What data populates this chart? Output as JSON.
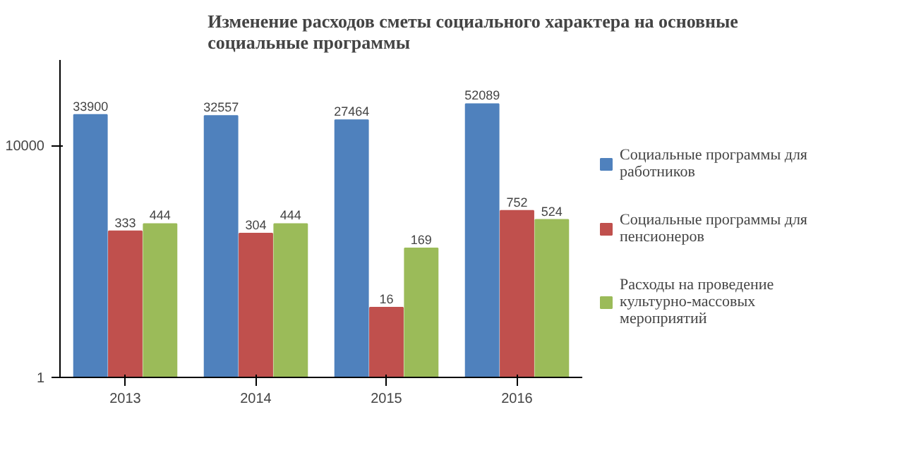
{
  "chart_data": {
    "type": "bar",
    "title": "Изменение расходов сметы социального характера на основные социальные программы",
    "categories": [
      "2013",
      "2014",
      "2015",
      "2016"
    ],
    "series": [
      {
        "name": "Социальные программы для работников",
        "color": "#4f81bd",
        "values": [
          33900,
          32557,
          27464,
          52089
        ]
      },
      {
        "name": "Социальные программы для пенсионеров",
        "color": "#c0504d",
        "values": [
          333,
          304,
          16,
          752
        ]
      },
      {
        "name": "Расходы на проведение культурно-массовых мероприятий",
        "color": "#9bbb59",
        "values": [
          444,
          444,
          169,
          524
        ]
      }
    ],
    "log": true,
    "ylim": [
      1,
      300000
    ],
    "yticks": [
      1,
      10000
    ],
    "data_labels": true,
    "legend": "right",
    "grid": false
  }
}
